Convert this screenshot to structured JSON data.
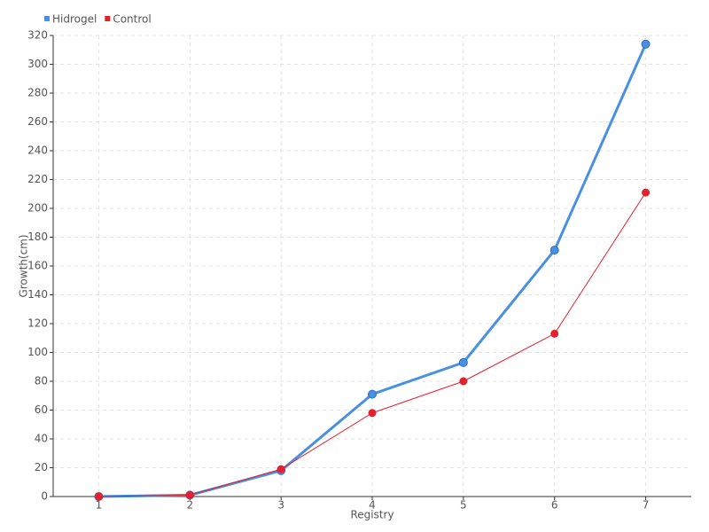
{
  "chart_data": {
    "type": "line",
    "categories": [
      "1",
      "2",
      "3",
      "4",
      "5",
      "6",
      "7"
    ],
    "series": [
      {
        "name": "Hidrogel",
        "color": "#4a90e2",
        "values": [
          0,
          1,
          18,
          71,
          93,
          171,
          314
        ]
      },
      {
        "name": "Control",
        "color": "#e3202c",
        "values": [
          0,
          1,
          19,
          58,
          80,
          113,
          211
        ]
      }
    ],
    "x_label": "Registry",
    "y_label": "Growth(cm)",
    "ylim": [
      0,
      320
    ],
    "yticks": [
      0,
      20,
      40,
      60,
      80,
      100,
      120,
      140,
      160,
      180,
      200,
      220,
      240,
      260,
      280,
      300,
      320
    ],
    "grid": true,
    "legend": "top-left"
  }
}
